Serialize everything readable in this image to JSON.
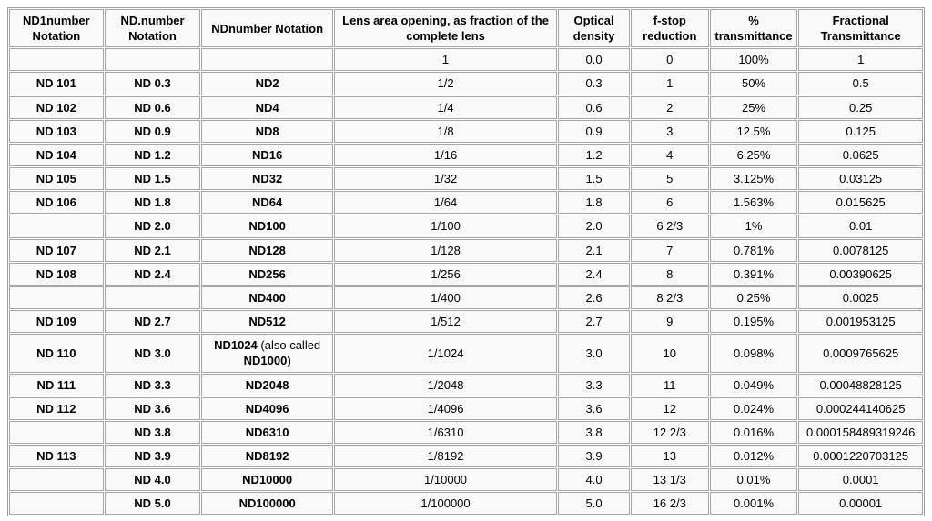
{
  "table": {
    "title": "Neutral density filter notation and transmittance table",
    "headers": [
      "ND1number Notation",
      "ND.number Notation",
      "NDnumber Notation",
      "Lens area opening, as fraction of the complete lens",
      "Optical density",
      "f-stop reduction",
      "% transmittance",
      "Fractional Transmittance"
    ],
    "bold_columns": [
      0,
      1,
      2
    ],
    "colors": {
      "cell_background": "#f9f9f9",
      "cell_border": "#a6a6a6",
      "table_border": "#9e9e9e",
      "gap": "#ffffff",
      "text": "#000000"
    },
    "rows": [
      [
        "",
        "",
        "",
        "1",
        "0.0",
        "0",
        "100%",
        "1"
      ],
      [
        "ND 101",
        "ND 0.3",
        "ND2",
        "1/2",
        "0.3",
        "1",
        "50%",
        "0.5"
      ],
      [
        "ND 102",
        "ND 0.6",
        "ND4",
        "1/4",
        "0.6",
        "2",
        "25%",
        "0.25"
      ],
      [
        "ND 103",
        "ND 0.9",
        "ND8",
        "1/8",
        "0.9",
        "3",
        "12.5%",
        "0.125"
      ],
      [
        "ND 104",
        "ND 1.2",
        "ND16",
        "1/16",
        "1.2",
        "4",
        "6.25%",
        "0.0625"
      ],
      [
        "ND 105",
        "ND 1.5",
        "ND32",
        "1/32",
        "1.5",
        "5",
        "3.125%",
        "0.03125"
      ],
      [
        "ND 106",
        "ND 1.8",
        "ND64",
        "1/64",
        "1.8",
        "6",
        "1.563%",
        "0.015625"
      ],
      [
        "",
        "ND 2.0",
        "ND100",
        "1/100",
        "2.0",
        "6 2/3",
        "1%",
        "0.01"
      ],
      [
        "ND 107",
        "ND 2.1",
        "ND128",
        "1/128",
        "2.1",
        "7",
        "0.781%",
        "0.0078125"
      ],
      [
        "ND 108",
        "ND 2.4",
        "ND256",
        "1/256",
        "2.4",
        "8",
        "0.391%",
        "0.00390625"
      ],
      [
        "",
        "",
        "ND400",
        "1/400",
        "2.6",
        "8 2/3",
        "0.25%",
        "0.0025"
      ],
      [
        "ND 109",
        "ND 2.7",
        "ND512",
        "1/512",
        "2.7",
        "9",
        "0.195%",
        "0.001953125"
      ],
      [
        "ND 110",
        "ND 3.0",
        {
          "parts": [
            {
              "text": "ND1024",
              "bold": true
            },
            {
              "text": " (also called ",
              "bold": false
            },
            {
              "text": "ND1000)",
              "bold": true
            }
          ]
        },
        "1/1024",
        "3.0",
        "10",
        "0.098%",
        "0.0009765625"
      ],
      [
        "ND 111",
        "ND 3.3",
        "ND2048",
        "1/2048",
        "3.3",
        "11",
        "0.049%",
        "0.00048828125"
      ],
      [
        "ND 112",
        "ND 3.6",
        "ND4096",
        "1/4096",
        "3.6",
        "12",
        "0.024%",
        "0.000244140625"
      ],
      [
        "",
        "ND 3.8",
        "ND6310",
        "1/6310",
        "3.8",
        "12 2/3",
        "0.016%",
        "0.000158489319246"
      ],
      [
        "ND 113",
        "ND 3.9",
        "ND8192",
        "1/8192",
        "3.9",
        "13",
        "0.012%",
        "0.0001220703125"
      ],
      [
        "",
        "ND 4.0",
        "ND10000",
        "1/10000",
        "4.0",
        "13 1/3",
        "0.01%",
        "0.0001"
      ],
      [
        "",
        "ND 5.0",
        "ND100000",
        "1/100000",
        "5.0",
        "16 2/3",
        "0.001%",
        "0.00001"
      ]
    ]
  },
  "chart_data": {
    "type": "table",
    "title": "Neutral density filter notation and transmittance",
    "columns": [
      "ND1number Notation",
      "ND.number Notation",
      "NDnumber Notation",
      "Lens area opening, as fraction of the complete lens",
      "Optical density",
      "f-stop reduction",
      "% transmittance",
      "Fractional Transmittance"
    ],
    "rows": [
      [
        "",
        "",
        "",
        "1",
        "0.0",
        "0",
        "100%",
        "1"
      ],
      [
        "ND 101",
        "ND 0.3",
        "ND2",
        "1/2",
        "0.3",
        "1",
        "50%",
        "0.5"
      ],
      [
        "ND 102",
        "ND 0.6",
        "ND4",
        "1/4",
        "0.6",
        "2",
        "25%",
        "0.25"
      ],
      [
        "ND 103",
        "ND 0.9",
        "ND8",
        "1/8",
        "0.9",
        "3",
        "12.5%",
        "0.125"
      ],
      [
        "ND 104",
        "ND 1.2",
        "ND16",
        "1/16",
        "1.2",
        "4",
        "6.25%",
        "0.0625"
      ],
      [
        "ND 105",
        "ND 1.5",
        "ND32",
        "1/32",
        "1.5",
        "5",
        "3.125%",
        "0.03125"
      ],
      [
        "ND 106",
        "ND 1.8",
        "ND64",
        "1/64",
        "1.8",
        "6",
        "1.563%",
        "0.015625"
      ],
      [
        "",
        "ND 2.0",
        "ND100",
        "1/100",
        "2.0",
        "6 2/3",
        "1%",
        "0.01"
      ],
      [
        "ND 107",
        "ND 2.1",
        "ND128",
        "1/128",
        "2.1",
        "7",
        "0.781%",
        "0.0078125"
      ],
      [
        "ND 108",
        "ND 2.4",
        "ND256",
        "1/256",
        "2.4",
        "8",
        "0.391%",
        "0.00390625"
      ],
      [
        "",
        "",
        "ND400",
        "1/400",
        "2.6",
        "8 2/3",
        "0.25%",
        "0.0025"
      ],
      [
        "ND 109",
        "ND 2.7",
        "ND512",
        "1/512",
        "2.7",
        "9",
        "0.195%",
        "0.001953125"
      ],
      [
        "ND 110",
        "ND 3.0",
        "ND1024 (also called ND1000)",
        "1/1024",
        "3.0",
        "10",
        "0.098%",
        "0.0009765625"
      ],
      [
        "ND 111",
        "ND 3.3",
        "ND2048",
        "1/2048",
        "3.3",
        "11",
        "0.049%",
        "0.00048828125"
      ],
      [
        "ND 112",
        "ND 3.6",
        "ND4096",
        "1/4096",
        "3.6",
        "12",
        "0.024%",
        "0.000244140625"
      ],
      [
        "",
        "ND 3.8",
        "ND6310",
        "1/6310",
        "3.8",
        "12 2/3",
        "0.016%",
        "0.000158489319246"
      ],
      [
        "ND 113",
        "ND 3.9",
        "ND8192",
        "1/8192",
        "3.9",
        "13",
        "0.012%",
        "0.0001220703125"
      ],
      [
        "",
        "ND 4.0",
        "ND10000",
        "1/10000",
        "4.0",
        "13 1/3",
        "0.01%",
        "0.0001"
      ],
      [
        "",
        "ND 5.0",
        "ND100000",
        "1/100000",
        "5.0",
        "16 2/3",
        "0.001%",
        "0.00001"
      ]
    ]
  }
}
